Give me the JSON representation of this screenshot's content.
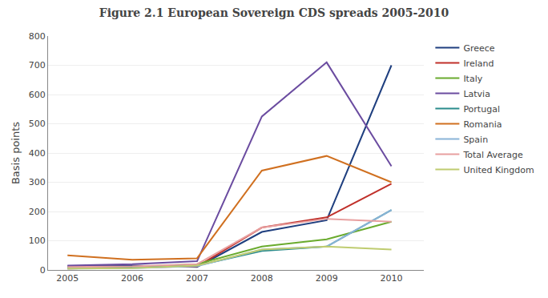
{
  "chart_data": {
    "type": "line",
    "title": "Figure 2.1 European Sovereign CDS spreads 2005-2010",
    "ylabel": "Basis points",
    "x": [
      2005,
      2006,
      2007,
      2008,
      2009,
      2010
    ],
    "series": [
      {
        "name": "Greece",
        "color": "#1F3F7F",
        "values": [
          13,
          15,
          10,
          130,
          170,
          700
        ]
      },
      {
        "name": "Ireland",
        "color": "#C0302A",
        "values": [
          5,
          8,
          12,
          145,
          180,
          295
        ]
      },
      {
        "name": "Italy",
        "color": "#6AAB2E",
        "values": [
          8,
          10,
          20,
          80,
          105,
          165
        ]
      },
      {
        "name": "Latvia",
        "color": "#6B4CA0",
        "values": [
          15,
          20,
          30,
          525,
          710,
          355
        ]
      },
      {
        "name": "Portugal",
        "color": "#2B8C8C",
        "values": [
          7,
          8,
          15,
          65,
          80,
          205
        ]
      },
      {
        "name": "Romania",
        "color": "#D07020",
        "values": [
          50,
          35,
          40,
          340,
          390,
          300
        ]
      },
      {
        "name": "Spain",
        "color": "#8AB4D8",
        "values": [
          5,
          6,
          13,
          70,
          80,
          205
        ]
      },
      {
        "name": "Total Average",
        "color": "#E8A0A0",
        "values": [
          10,
          12,
          20,
          145,
          175,
          165
        ]
      },
      {
        "name": "United Kingdom",
        "color": "#BFCC70",
        "values": [
          5,
          6,
          15,
          70,
          80,
          70
        ]
      }
    ],
    "xlim": [
      2004.7,
      2010.5
    ],
    "xticks": [
      2005,
      2006,
      2007,
      2008,
      2009,
      2010
    ],
    "ylim": [
      0,
      800
    ],
    "yticks": [
      0,
      100,
      200,
      300,
      400,
      500,
      600,
      700,
      800
    ],
    "grid": true,
    "legend": "right"
  }
}
